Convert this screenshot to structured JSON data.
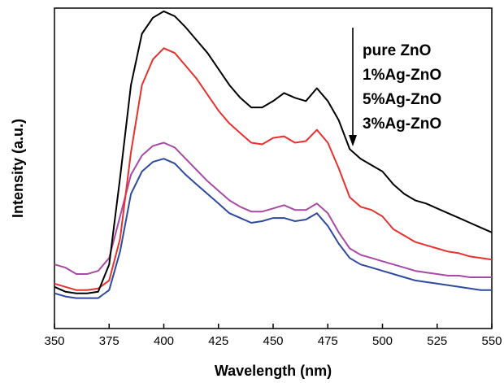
{
  "chart_data": {
    "type": "line",
    "xlabel": "Wavelength (nm)",
    "ylabel": "Intensity (a.u.)",
    "xlim": [
      350,
      550
    ],
    "ylim": [
      0,
      100
    ],
    "x_ticks": [
      "350",
      "375",
      "400",
      "425",
      "450",
      "475",
      "500",
      "525",
      "550"
    ],
    "y_ticks_shown": false,
    "legend_position": "top-right",
    "legend_arrow": "down",
    "grid": false,
    "x": [
      350,
      355,
      360,
      365,
      370,
      375,
      380,
      385,
      390,
      395,
      400,
      405,
      410,
      415,
      420,
      425,
      430,
      435,
      440,
      445,
      450,
      455,
      460,
      465,
      470,
      475,
      480,
      485,
      490,
      495,
      500,
      505,
      510,
      515,
      520,
      525,
      530,
      535,
      540,
      545,
      550
    ],
    "series": [
      {
        "name": "pure ZnO",
        "color": "#000000",
        "values": [
          13,
          11.5,
          11,
          11,
          11.5,
          20,
          47,
          76,
          92,
          97,
          99,
          97.5,
          94,
          90,
          86,
          81,
          76,
          72,
          69,
          69,
          71,
          73.5,
          72,
          71,
          75,
          71,
          65,
          56,
          53,
          51,
          49,
          45,
          42,
          40,
          39,
          37.5,
          36,
          34.5,
          33,
          31.5,
          30
        ]
      },
      {
        "name": "1%Ag-ZnO",
        "color": "#e8312e",
        "values": [
          14,
          13,
          12,
          12,
          12.5,
          15,
          28,
          55,
          76,
          84,
          87.5,
          86,
          82,
          78,
          73,
          68,
          64,
          61,
          58,
          57.5,
          59.5,
          60,
          58,
          58.5,
          62,
          58,
          50,
          41,
          38,
          37,
          35,
          31,
          29,
          27,
          26,
          25,
          24,
          23.5,
          22.5,
          22,
          21.5
        ]
      },
      {
        "name": "5%Ag-ZnO",
        "color": "#a74aa6",
        "values": [
          20,
          19,
          17,
          17,
          18,
          22,
          35,
          48,
          54,
          57,
          58,
          56.5,
          53,
          49.5,
          46,
          43,
          40,
          38,
          36.5,
          36.5,
          37.5,
          38.5,
          37,
          37,
          39,
          36,
          30,
          25,
          23,
          22,
          21,
          20,
          19,
          18,
          17.5,
          17,
          16.5,
          16.5,
          16,
          16,
          16
        ]
      },
      {
        "name": "3%Ag-ZnO",
        "color": "#2e4a9e",
        "values": [
          11,
          10,
          9.5,
          9.5,
          9.5,
          12,
          24,
          42,
          49,
          52,
          53,
          51.5,
          48,
          45,
          42,
          39,
          36,
          34.5,
          33,
          33.5,
          34.5,
          34.5,
          33.5,
          34,
          36,
          32,
          26.5,
          22,
          20,
          19,
          18,
          17,
          16,
          15,
          14.5,
          14,
          13.5,
          13,
          12.5,
          12,
          12
        ]
      }
    ]
  }
}
